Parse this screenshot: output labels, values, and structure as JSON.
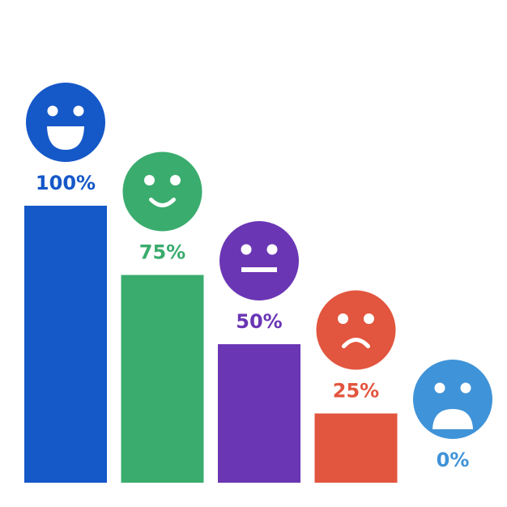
{
  "chart_data": {
    "type": "bar",
    "categories": [
      "very happy",
      "happy",
      "neutral",
      "sad",
      "very sad"
    ],
    "values": [
      100,
      75,
      50,
      25,
      0
    ],
    "ylim": [
      0,
      100
    ],
    "grid": false,
    "labels": [
      "100%",
      "75%",
      "50%",
      "25%",
      "0%"
    ],
    "colors": [
      "#1558c8",
      "#3aac6e",
      "#6a36b4",
      "#e2553e",
      "#3f93d8"
    ],
    "icons": [
      "grin-face-icon",
      "smile-face-icon",
      "neutral-face-icon",
      "frown-face-icon",
      "shocked-face-icon"
    ]
  }
}
